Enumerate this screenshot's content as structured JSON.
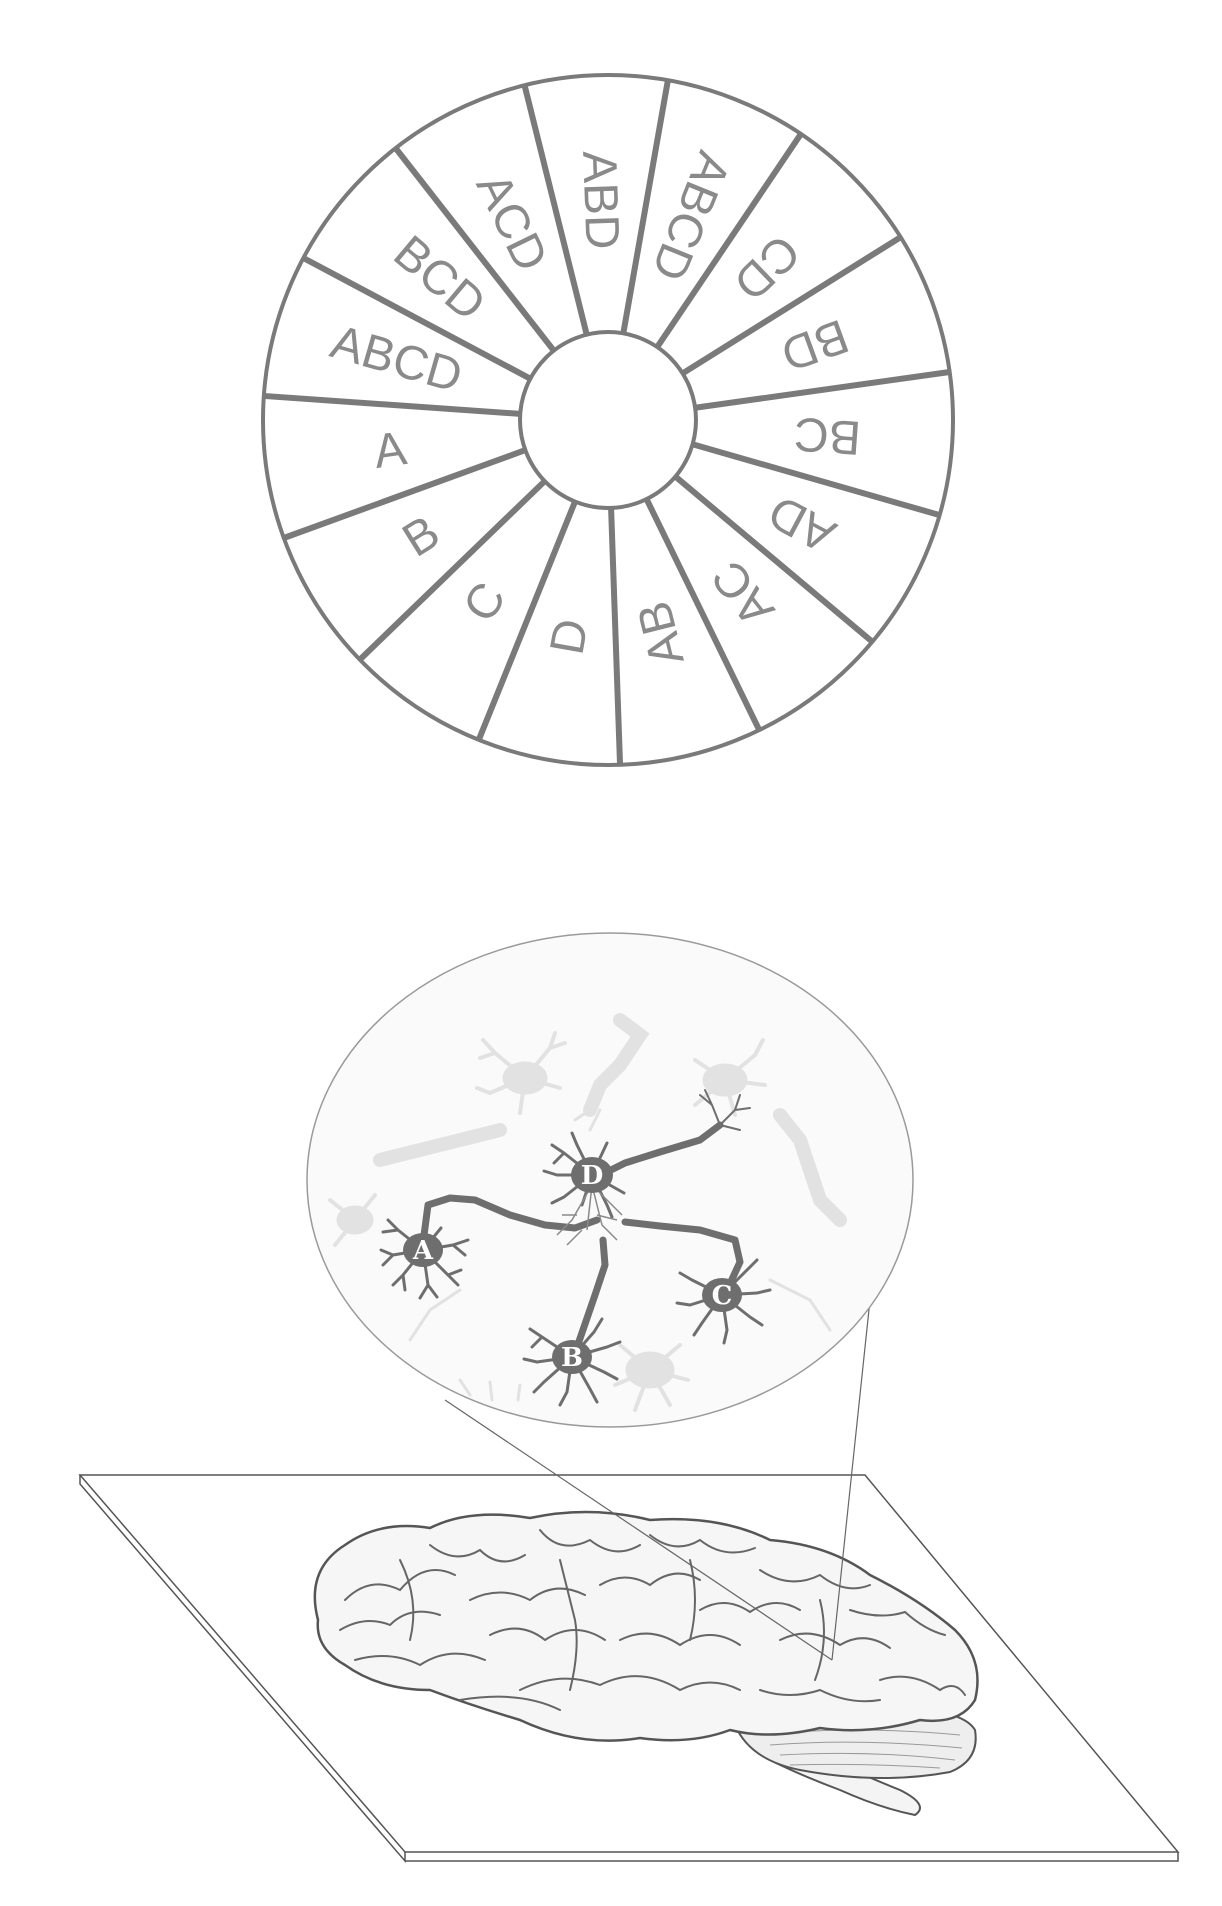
{
  "wheel": {
    "segments": [
      "ABD",
      "ABCD",
      "CD",
      "BD",
      "BC",
      "AD",
      "AC",
      "AB",
      "D",
      "C",
      "B",
      "A",
      "ABCD",
      "BCD",
      "ACD"
    ]
  },
  "neurons": {
    "labels": [
      "A",
      "B",
      "C",
      "D"
    ]
  },
  "colors": {
    "wheel_stroke": "#7a7a7a",
    "wheel_text": "#8a8a8a",
    "neuron_dark": "#6e6e6e",
    "neuron_faint": "#dcdcdc",
    "bubble_fill": "#f7f7f7",
    "line": "#555555"
  }
}
